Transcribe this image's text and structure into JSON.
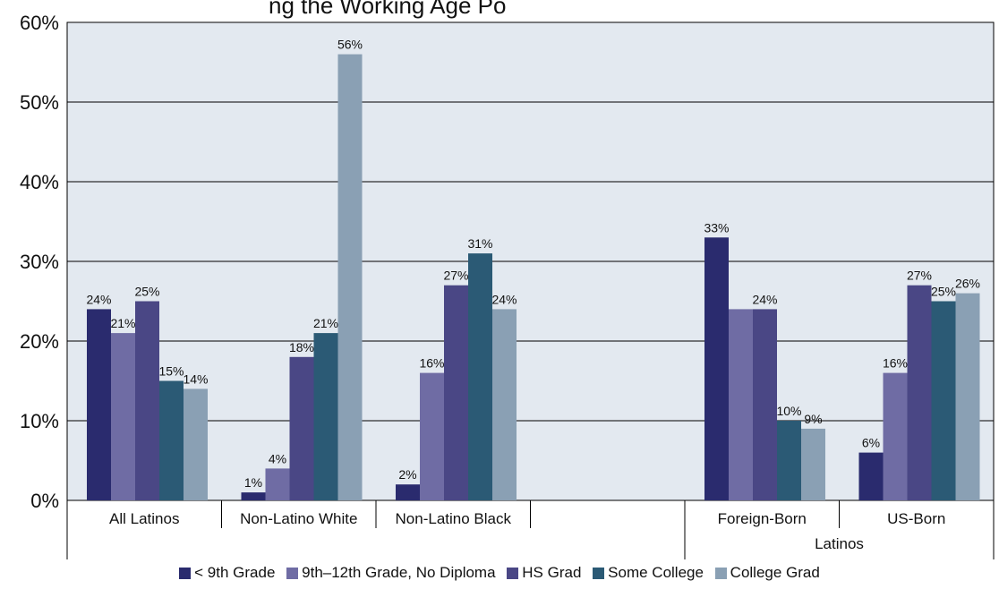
{
  "title_fragment": "ng the Working Age Po",
  "colors": {
    "plot_bg": "#e3e9f0",
    "lt9": "#2a2b6e",
    "g9_12": "#6f6ca4",
    "hs": "#4a4785",
    "some_college": "#2b5a75",
    "college": "#8aa0b4"
  },
  "chart_data": {
    "type": "bar",
    "title": "",
    "xlabel": "",
    "ylabel": "",
    "ylim": [
      0,
      60
    ],
    "yticks": [
      "0%",
      "10%",
      "20%",
      "30%",
      "40%",
      "50%",
      "60%"
    ],
    "grid": true,
    "legend_position": "bottom",
    "categories": [
      "All Latinos",
      "Non-Latino White",
      "Non-Latino Black",
      "",
      "Foreign-Born",
      "US-Born"
    ],
    "group_label": "Latinos",
    "series": [
      {
        "name": "< 9th Grade",
        "color_key": "lt9",
        "values": [
          24,
          1,
          2,
          null,
          33,
          6
        ]
      },
      {
        "name": "9th–12th Grade, No Diploma",
        "color_key": "g9_12",
        "values": [
          21,
          4,
          16,
          null,
          24,
          16
        ]
      },
      {
        "name": "HS Grad",
        "color_key": "hs",
        "values": [
          25,
          18,
          27,
          null,
          24,
          27
        ]
      },
      {
        "name": "Some College",
        "color_key": "some_college",
        "values": [
          15,
          21,
          31,
          null,
          10,
          25
        ]
      },
      {
        "name": "College Grad",
        "color_key": "college",
        "values": [
          14,
          56,
          24,
          null,
          9,
          26
        ]
      }
    ],
    "data_labels": [
      [
        "24%",
        "1%",
        "2%",
        "",
        "33%",
        "6%"
      ],
      [
        "21%",
        "4%",
        "16%",
        "",
        "",
        "16%"
      ],
      [
        "25%",
        "18%",
        "27%",
        "",
        "24%",
        "27%"
      ],
      [
        "15%",
        "21%",
        "31%",
        "",
        "10%",
        "25%"
      ],
      [
        "14%",
        "56%",
        "24%",
        "",
        "9%",
        "26%"
      ]
    ]
  }
}
